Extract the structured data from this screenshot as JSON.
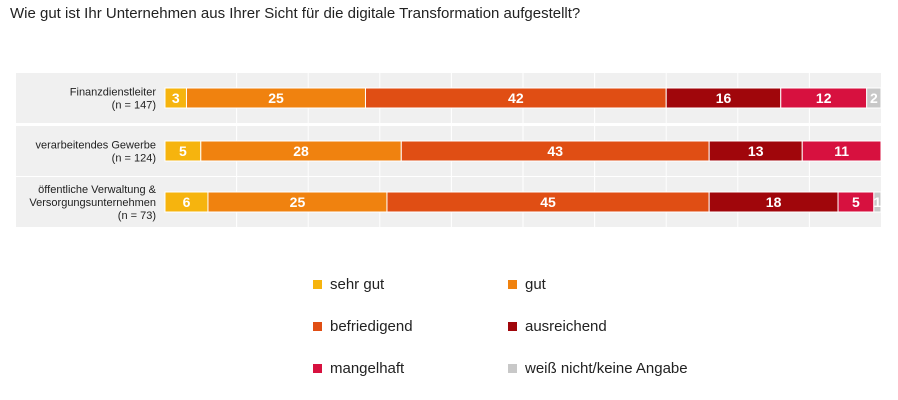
{
  "chart_data": {
    "type": "bar",
    "orientation": "horizontal",
    "stacked": true,
    "title": "Wie gut ist Ihr Unternehmen aus Ihrer Sicht für die digitale Transformation aufgestellt?",
    "categories": [
      [
        "Finanzdienstleiter",
        "(n = 147)"
      ],
      [
        "verarbeitendes Gewerbe",
        "(n = 124)"
      ],
      [
        "öffentliche Verwaltung &",
        "Versorgungsunternehmen",
        "(n = 73)"
      ]
    ],
    "series": [
      {
        "name": "sehr gut",
        "color": "#F6B40E",
        "values": [
          3,
          5,
          6
        ]
      },
      {
        "name": "gut",
        "color": "#F0820F",
        "values": [
          25,
          28,
          25
        ]
      },
      {
        "name": "befriedigend",
        "color": "#E04E14",
        "values": [
          42,
          43,
          45
        ]
      },
      {
        "name": "ausreichend",
        "color": "#A0060B",
        "values": [
          16,
          13,
          18
        ]
      },
      {
        "name": "mangelhaft",
        "color": "#D7113F",
        "values": [
          12,
          11,
          5
        ]
      },
      {
        "name": "weiß nicht/keine Angabe",
        "color": "#C8C8C8",
        "values": [
          2,
          0,
          1
        ]
      }
    ],
    "xlim": [
      0,
      100
    ],
    "grid": true,
    "legend_position": "bottom"
  }
}
